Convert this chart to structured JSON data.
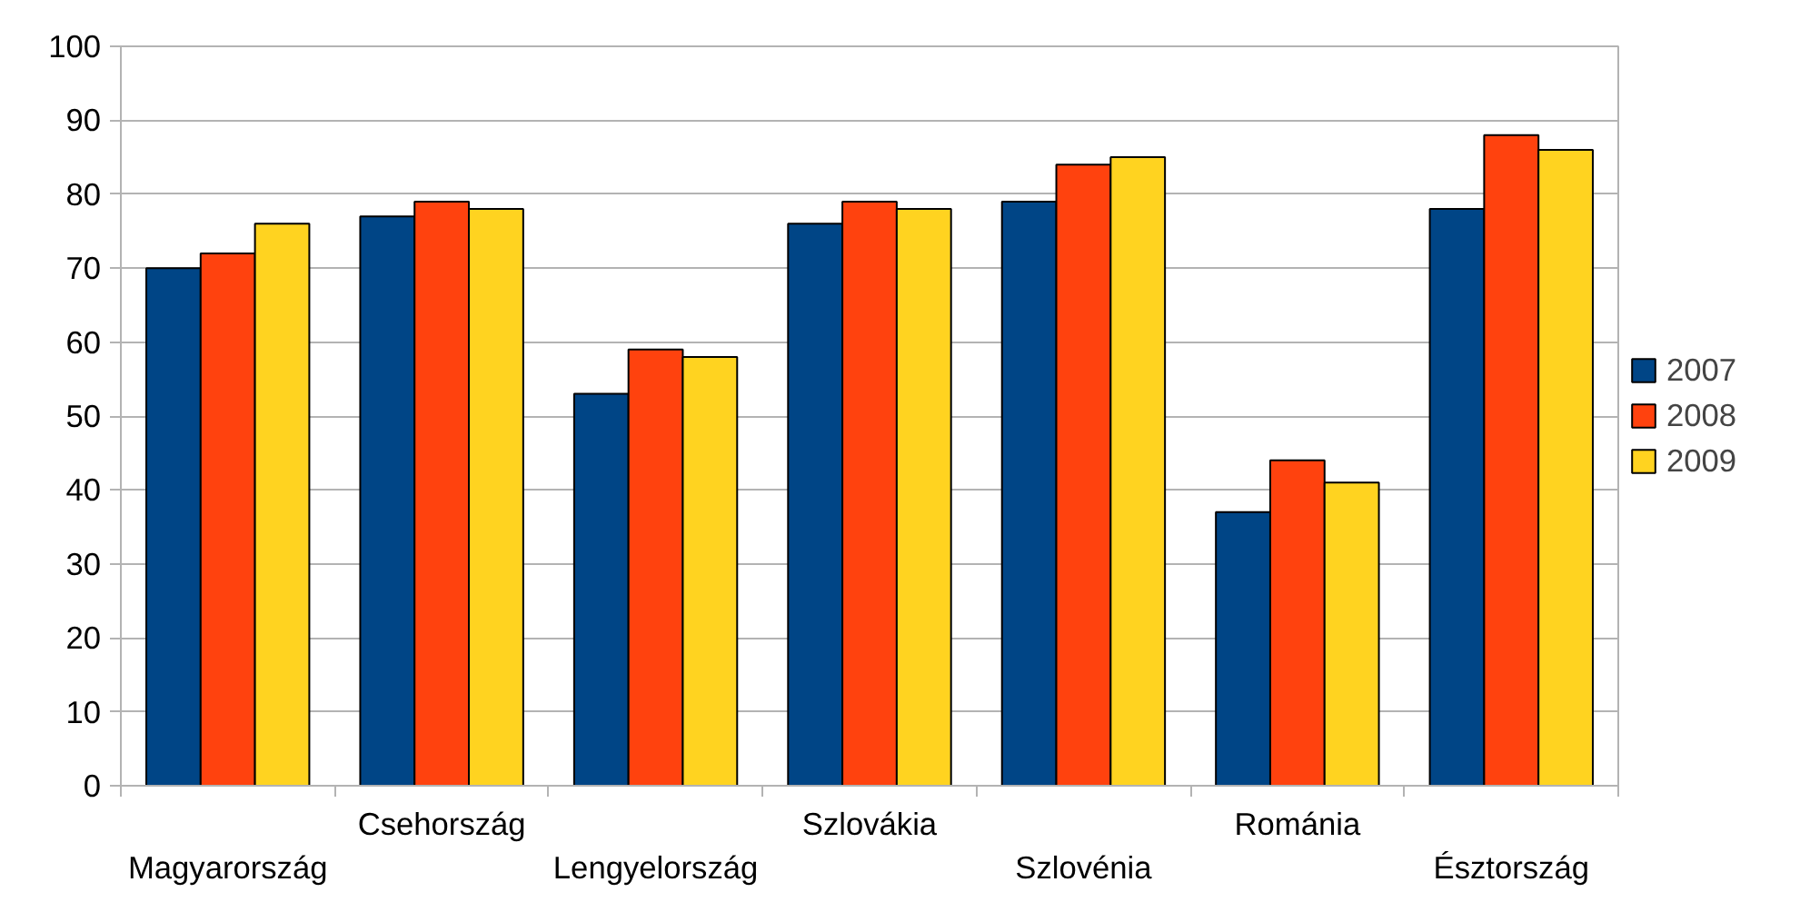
{
  "chart_data": {
    "type": "bar",
    "categories": [
      "Magyarország",
      "Csehország",
      "Lengyelország",
      "Szlovákia",
      "Szlovénia",
      "Románia",
      "Észtország"
    ],
    "series": [
      {
        "name": "2007",
        "color": "#004586",
        "values": [
          70,
          77,
          53,
          76,
          79,
          37,
          78
        ]
      },
      {
        "name": "2008",
        "color": "#ff420e",
        "values": [
          72,
          79,
          59,
          79,
          84,
          44,
          88
        ]
      },
      {
        "name": "2009",
        "color": "#ffd320",
        "values": [
          76,
          78,
          58,
          78,
          85,
          41,
          86
        ]
      }
    ],
    "ylim": [
      0,
      100
    ],
    "yticks": [
      0,
      10,
      20,
      30,
      40,
      50,
      60,
      70,
      80,
      90,
      100
    ],
    "grid": "y",
    "legend": "right"
  }
}
